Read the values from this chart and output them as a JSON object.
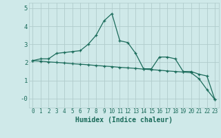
{
  "xlabel": "Humidex (Indice chaleur)",
  "bg_color": "#cfe9e9",
  "grid_color": "#b0cccc",
  "line_color": "#1a6b5a",
  "line1_x": [
    0,
    1,
    2,
    3,
    4,
    5,
    6,
    7,
    8,
    9,
    10,
    11,
    12,
    13,
    14,
    15,
    16,
    17,
    18,
    19,
    20,
    21,
    22,
    23
  ],
  "line1_y": [
    2.1,
    2.2,
    2.2,
    2.5,
    2.55,
    2.6,
    2.65,
    3.0,
    3.5,
    4.3,
    4.7,
    3.2,
    3.1,
    2.5,
    1.65,
    1.65,
    2.3,
    2.3,
    2.2,
    1.5,
    1.5,
    1.35,
    1.25,
    -0.05
  ],
  "line2_x": [
    0,
    1,
    2,
    3,
    4,
    5,
    6,
    7,
    8,
    9,
    10,
    11,
    12,
    13,
    14,
    15,
    16,
    17,
    18,
    19,
    20,
    21,
    22,
    23
  ],
  "line2_y": [
    2.1,
    2.07,
    2.03,
    2.0,
    1.97,
    1.93,
    1.9,
    1.87,
    1.83,
    1.8,
    1.77,
    1.73,
    1.7,
    1.67,
    1.63,
    1.6,
    1.57,
    1.53,
    1.5,
    1.47,
    1.43,
    1.1,
    0.5,
    -0.05
  ],
  "ylim": [
    -0.5,
    5.3
  ],
  "xlim": [
    -0.5,
    23.5
  ],
  "yticks": [
    0,
    1,
    2,
    3,
    4,
    5
  ],
  "ytick_labels": [
    "-0",
    "1",
    "2",
    "3",
    "4",
    "5"
  ],
  "xticks": [
    0,
    1,
    2,
    3,
    4,
    5,
    6,
    7,
    8,
    9,
    10,
    11,
    12,
    13,
    14,
    15,
    16,
    17,
    18,
    19,
    20,
    21,
    22,
    23
  ]
}
